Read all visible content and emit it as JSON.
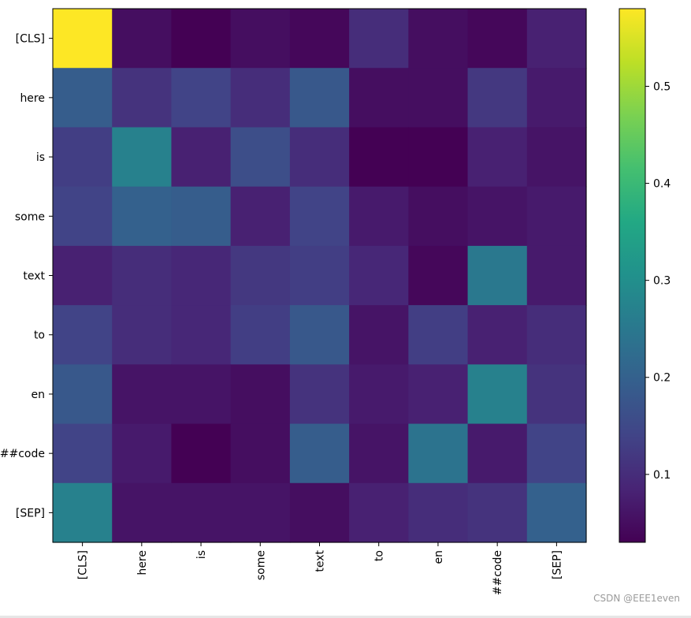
{
  "chart_data": {
    "type": "heatmap",
    "title": "",
    "xlabel": "",
    "ylabel": "",
    "colormap": "viridis",
    "x_labels": [
      "[CLS]",
      "here",
      "is",
      "some",
      "text",
      "to",
      "en",
      "##code",
      "[SEP]"
    ],
    "y_labels": [
      "[CLS]",
      "here",
      "is",
      "some",
      "text",
      "to",
      "en",
      "##code",
      "[SEP]"
    ],
    "values": [
      [
        0.58,
        0.05,
        0.03,
        0.05,
        0.04,
        0.1,
        0.05,
        0.04,
        0.08
      ],
      [
        0.19,
        0.11,
        0.14,
        0.1,
        0.18,
        0.05,
        0.05,
        0.12,
        0.07
      ],
      [
        0.13,
        0.27,
        0.08,
        0.16,
        0.1,
        0.03,
        0.03,
        0.08,
        0.06
      ],
      [
        0.14,
        0.2,
        0.19,
        0.08,
        0.14,
        0.07,
        0.05,
        0.06,
        0.07
      ],
      [
        0.08,
        0.1,
        0.09,
        0.12,
        0.13,
        0.09,
        0.04,
        0.25,
        0.07
      ],
      [
        0.14,
        0.1,
        0.09,
        0.13,
        0.18,
        0.06,
        0.13,
        0.08,
        0.1
      ],
      [
        0.18,
        0.06,
        0.06,
        0.05,
        0.11,
        0.07,
        0.08,
        0.27,
        0.11
      ],
      [
        0.14,
        0.07,
        0.03,
        0.05,
        0.19,
        0.06,
        0.24,
        0.07,
        0.14
      ],
      [
        0.27,
        0.06,
        0.06,
        0.06,
        0.05,
        0.08,
        0.1,
        0.11,
        0.2
      ]
    ],
    "colorbar": {
      "range": [
        0.03,
        0.58
      ],
      "ticks": [
        0.1,
        0.2,
        0.3,
        0.4,
        0.5
      ],
      "tick_labels": [
        "0.1",
        "0.2",
        "0.3",
        "0.4",
        "0.5"
      ]
    },
    "grid": false
  },
  "watermark": "CSDN @EEE1even"
}
